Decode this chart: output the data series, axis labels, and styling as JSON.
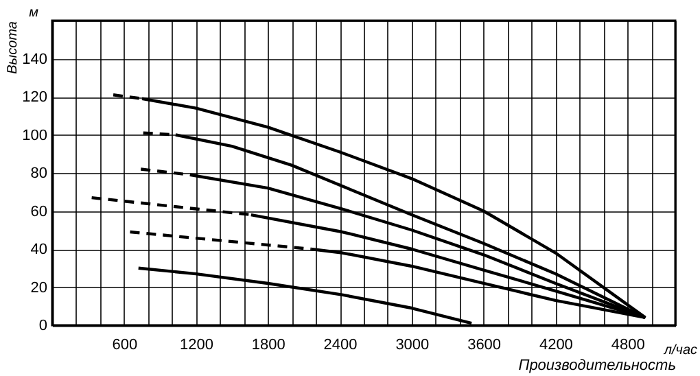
{
  "chart_data": {
    "type": "line",
    "xlabel": "Производительность",
    "ylabel": "Высота",
    "annotations": [
      "м",
      "л/час"
    ],
    "xlim": [
      0,
      5200
    ],
    "ylim": [
      0,
      160
    ],
    "xticks": [
      {
        "value": 0,
        "label": null
      },
      {
        "value": 200,
        "label": null
      },
      {
        "value": 400,
        "label": null
      },
      600,
      {
        "value": 800,
        "label": null
      },
      {
        "value": 1000,
        "label": null
      },
      1200,
      {
        "value": 1400,
        "label": null
      },
      {
        "value": 1600,
        "label": null
      },
      1800,
      {
        "value": 2000,
        "label": null
      },
      {
        "value": 2200,
        "label": null
      },
      2400,
      {
        "value": 2600,
        "label": null
      },
      {
        "value": 2800,
        "label": null
      },
      3000,
      {
        "value": 3200,
        "label": null
      },
      {
        "value": 3400,
        "label": null
      },
      3600,
      {
        "value": 3800,
        "label": null
      },
      {
        "value": 4000,
        "label": null
      },
      4200,
      {
        "value": 4400,
        "label": null
      },
      {
        "value": 4600,
        "label": null
      },
      4800,
      {
        "value": 5000,
        "label": null
      },
      {
        "value": 5200,
        "label": null
      }
    ],
    "yticks": [
      0,
      20,
      40,
      60,
      80,
      100,
      120,
      140,
      {
        "value": 160,
        "label": null
      }
    ],
    "grid": true,
    "marker": "none",
    "series": [
      {
        "color": "#000000",
        "line_style": "dashed",
        "x": [
          510,
          750
        ],
        "values": [
          121,
          119
        ]
      },
      {
        "color": "#000000",
        "line_style": "solid",
        "x": [
          750,
          1200,
          1800,
          2400,
          3000,
          3600,
          4200,
          4950
        ],
        "values": [
          119,
          114,
          104,
          91,
          77,
          60,
          38,
          4
        ]
      },
      {
        "color": "#000000",
        "line_style": "dashed",
        "x": [
          760,
          1030
        ],
        "values": [
          101,
          100
        ]
      },
      {
        "color": "#000000",
        "line_style": "solid",
        "x": [
          1030,
          1500,
          2000,
          2500,
          3000,
          3600,
          4200,
          4950
        ],
        "values": [
          100,
          94,
          84,
          71,
          58,
          43,
          27,
          4
        ]
      },
      {
        "color": "#000000",
        "line_style": "dashed",
        "x": [
          740,
          1150
        ],
        "values": [
          82,
          79
        ]
      },
      {
        "color": "#000000",
        "line_style": "solid",
        "x": [
          1150,
          1800,
          2420,
          3000,
          3600,
          4200,
          4950
        ],
        "values": [
          79,
          72,
          61,
          50,
          37,
          22,
          4
        ]
      },
      {
        "color": "#000000",
        "line_style": "dashed",
        "x": [
          330,
          1660
        ],
        "values": [
          67,
          58
        ]
      },
      {
        "color": "#000000",
        "line_style": "solid",
        "x": [
          1660,
          2420,
          3000,
          3600,
          4200,
          4950
        ],
        "values": [
          58,
          49,
          40,
          29,
          18,
          4
        ]
      },
      {
        "color": "#000000",
        "line_style": "dashed",
        "x": [
          650,
          2160
        ],
        "values": [
          49,
          40
        ]
      },
      {
        "color": "#000000",
        "line_style": "solid",
        "x": [
          2160,
          2420,
          3000,
          3600,
          4200,
          4950
        ],
        "values": [
          40,
          38,
          31,
          22,
          13,
          4
        ]
      },
      {
        "color": "#000000",
        "line_style": "solid",
        "x": [
          720,
          1200,
          1800,
          2420,
          3000,
          3500
        ],
        "values": [
          30,
          27,
          22,
          16,
          9,
          1
        ]
      }
    ]
  }
}
